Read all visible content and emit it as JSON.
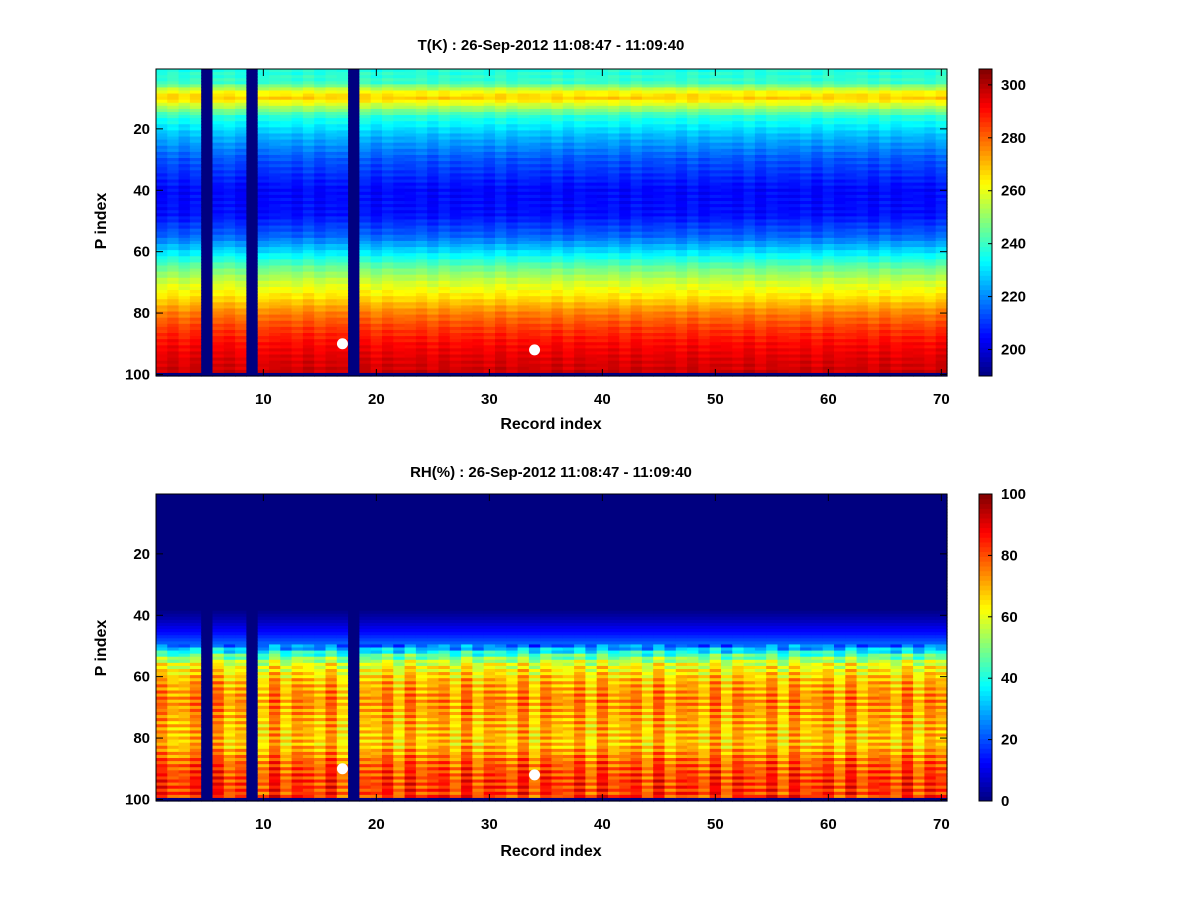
{
  "chart_data": [
    {
      "type": "heatmap",
      "title": "T(K) : 26-Sep-2012 11:08:47 - 11:09:40",
      "xlabel": "Record index",
      "ylabel": "P index",
      "xlim": [
        0.5,
        70.5
      ],
      "ylim": [
        0.5,
        100.5
      ],
      "y_direction": "reversed",
      "x_ticks": [
        10,
        20,
        30,
        40,
        50,
        60,
        70
      ],
      "y_ticks": [
        20,
        40,
        60,
        80,
        100
      ],
      "colormap": "jet",
      "colorbar": {
        "min": 190,
        "max": 306,
        "ticks": [
          200,
          220,
          240,
          260,
          280,
          300
        ]
      },
      "missing_records": [
        5,
        9,
        18
      ],
      "missing_level_from": 100,
      "profile": [
        {
          "p": 1,
          "value": 237
        },
        {
          "p": 5,
          "value": 240
        },
        {
          "p": 8,
          "value": 262
        },
        {
          "p": 10,
          "value": 268
        },
        {
          "p": 12,
          "value": 258
        },
        {
          "p": 16,
          "value": 238
        },
        {
          "p": 22,
          "value": 226
        },
        {
          "p": 30,
          "value": 214
        },
        {
          "p": 40,
          "value": 205
        },
        {
          "p": 48,
          "value": 206
        },
        {
          "p": 55,
          "value": 216
        },
        {
          "p": 60,
          "value": 230
        },
        {
          "p": 65,
          "value": 245
        },
        {
          "p": 70,
          "value": 257
        },
        {
          "p": 75,
          "value": 266
        },
        {
          "p": 80,
          "value": 277
        },
        {
          "p": 85,
          "value": 285
        },
        {
          "p": 90,
          "value": 291
        },
        {
          "p": 95,
          "value": 295
        },
        {
          "p": 99,
          "value": 297
        }
      ],
      "markers": [
        {
          "record": 17,
          "p": 90
        },
        {
          "record": 34,
          "p": 92
        }
      ]
    },
    {
      "type": "heatmap",
      "title": "RH(%) : 26-Sep-2012 11:08:47 - 11:09:40",
      "xlabel": "Record index",
      "ylabel": "P index",
      "xlim": [
        0.5,
        70.5
      ],
      "ylim": [
        0.5,
        100.5
      ],
      "y_direction": "reversed",
      "x_ticks": [
        10,
        20,
        30,
        40,
        50,
        60,
        70
      ],
      "y_ticks": [
        20,
        40,
        60,
        80,
        100
      ],
      "colormap": "jet",
      "colorbar": {
        "min": 0,
        "max": 100,
        "ticks": [
          0,
          20,
          40,
          60,
          80,
          100
        ]
      },
      "missing_records": [
        5,
        9,
        18
      ],
      "missing_level_from": 100,
      "profile": [
        {
          "p": 1,
          "value": 0
        },
        {
          "p": 38,
          "value": 0
        },
        {
          "p": 42,
          "value": 6
        },
        {
          "p": 46,
          "value": 14
        },
        {
          "p": 50,
          "value": 24
        },
        {
          "p": 53,
          "value": 45
        },
        {
          "p": 56,
          "value": 60
        },
        {
          "p": 62,
          "value": 70
        },
        {
          "p": 68,
          "value": 74
        },
        {
          "p": 75,
          "value": 70
        },
        {
          "p": 82,
          "value": 68
        },
        {
          "p": 88,
          "value": 78
        },
        {
          "p": 94,
          "value": 82
        },
        {
          "p": 99,
          "value": 82
        }
      ],
      "markers": [
        {
          "record": 17,
          "p": 90
        },
        {
          "record": 34,
          "p": 92
        }
      ]
    }
  ]
}
